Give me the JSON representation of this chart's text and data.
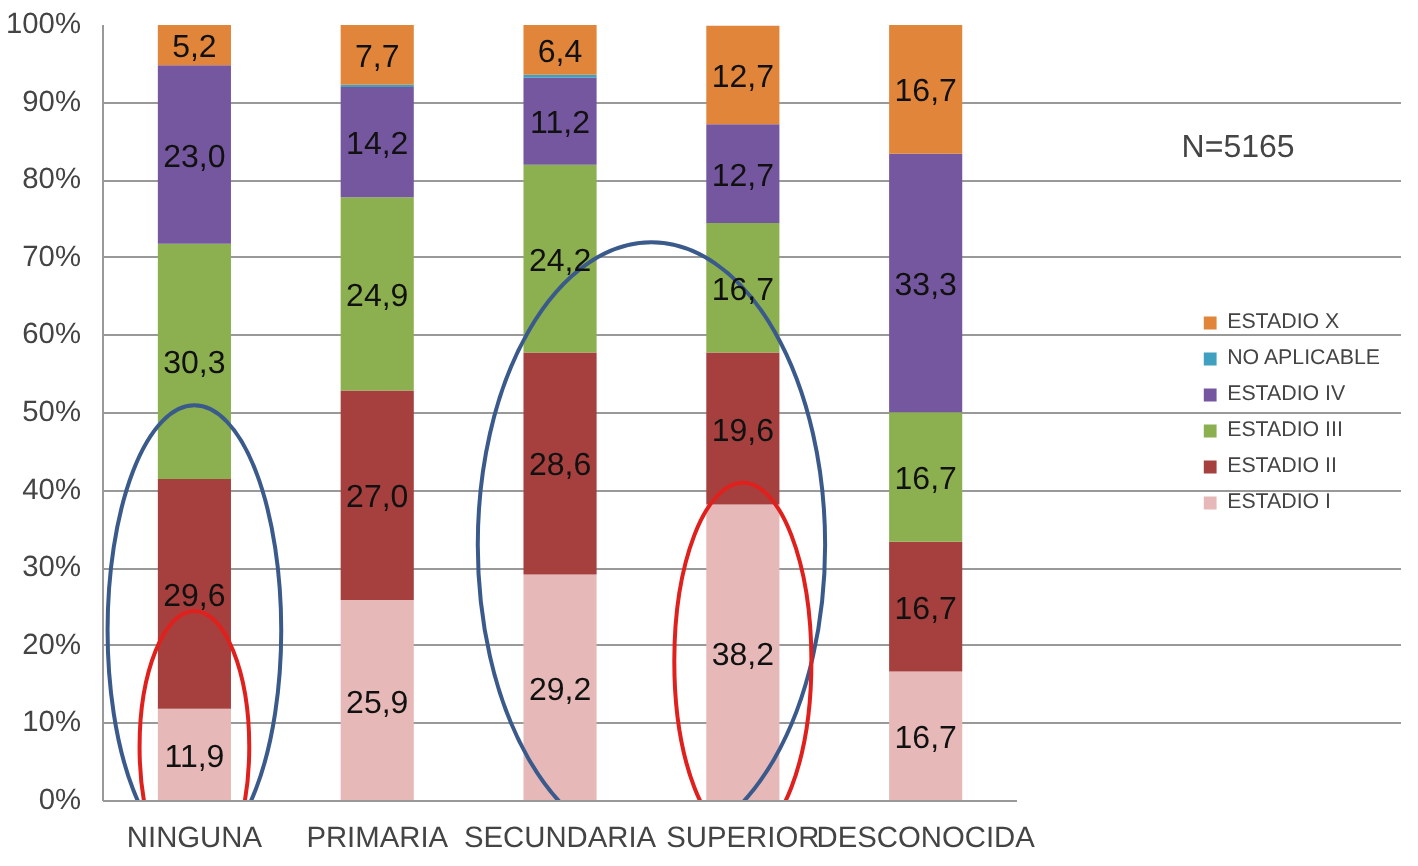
{
  "chart_data": {
    "type": "bar",
    "stacked": true,
    "categories": [
      "NINGUNA",
      "PRIMARIA",
      "SECUNDARIA",
      "SUPERIOR",
      "DESCONOCIDA"
    ],
    "series": [
      {
        "name": "ESTADIO I",
        "color": "#e6b9b8",
        "values": [
          11.9,
          25.9,
          29.2,
          38.2,
          16.7
        ],
        "value_labels": [
          "11,9",
          "25,9",
          "29,2",
          "38,2",
          "16,7"
        ]
      },
      {
        "name": "ESTADIO II",
        "color": "#a5403e",
        "values": [
          29.6,
          27.0,
          28.6,
          19.6,
          16.7
        ],
        "value_labels": [
          "29,6",
          "27,0",
          "28,6",
          "19,6",
          "16,7"
        ]
      },
      {
        "name": "ESTADIO III",
        "color": "#8cb04f",
        "values": [
          30.3,
          24.9,
          24.2,
          16.7,
          16.7
        ],
        "value_labels": [
          "30,3",
          "24,9",
          "24,2",
          "16,7",
          "16,7"
        ]
      },
      {
        "name": "ESTADIO IV",
        "color": "#7557a0",
        "values": [
          23.0,
          14.2,
          11.2,
          12.7,
          33.3
        ],
        "value_labels": [
          "23,0",
          "14,2",
          "11,2",
          "12,7",
          "33,3"
        ]
      },
      {
        "name": "NO APLICABLE",
        "color": "#3fa0c0",
        "values": [
          0,
          0.3,
          0.4,
          null,
          0
        ],
        "value_labels": [
          null,
          null,
          null,
          null,
          null
        ]
      },
      {
        "name": "ESTADIO X",
        "color": "#e0853a",
        "values": [
          5.2,
          7.7,
          6.4,
          12.7,
          16.7
        ],
        "value_labels": [
          "5,2",
          "7,7",
          "6,4",
          "12,7",
          "16,7"
        ]
      }
    ],
    "ylim": [
      0,
      100
    ],
    "yticks": [
      {
        "value": 0,
        "label": "0%"
      },
      {
        "value": 10,
        "label": "10%"
      },
      {
        "value": 20,
        "label": "20%"
      },
      {
        "value": 30,
        "label": "30%"
      },
      {
        "value": 40,
        "label": "40%"
      },
      {
        "value": 50,
        "label": "50%"
      },
      {
        "value": 60,
        "label": "60%"
      },
      {
        "value": 70,
        "label": "70%"
      },
      {
        "value": 80,
        "label": "80%"
      },
      {
        "value": 90,
        "label": "90%"
      },
      {
        "value": 100,
        "label": "100%"
      }
    ],
    "grid": "y",
    "legend": "right",
    "annotations": [
      "N=5165"
    ]
  }
}
